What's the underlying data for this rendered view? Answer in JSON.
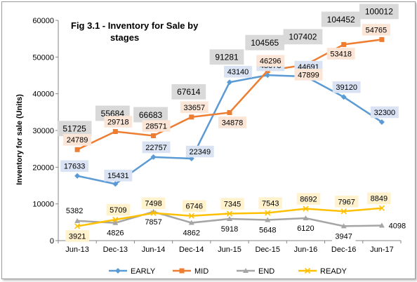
{
  "chart_data": {
    "type": "line",
    "title_line1": "Fig 3.1 - Inventory for Sale by",
    "title_line2": "stages",
    "ylabel": "Inventory for sale (Units)",
    "xlabel": "",
    "ylim": [
      0,
      60000
    ],
    "yticks": [
      0,
      10000,
      20000,
      30000,
      40000,
      50000,
      60000
    ],
    "categories": [
      "Jun-13",
      "Dec-13",
      "Jun-14",
      "Dec-14",
      "Jun-15",
      "Dec-15",
      "Jun-16",
      "Dec-16",
      "Jun-17"
    ],
    "series": [
      {
        "name": "EARLY",
        "color": "#5b9bd5",
        "marker": "diamond",
        "values": [
          17633,
          15431,
          22757,
          22349,
          43140,
          45078,
          44691,
          39120,
          32300
        ]
      },
      {
        "name": "MID",
        "color": "#ed7d31",
        "marker": "square",
        "values": [
          24789,
          29718,
          28571,
          33657,
          34878,
          46296,
          47899,
          53418,
          54765
        ]
      },
      {
        "name": "END",
        "color": "#a5a5a5",
        "marker": "triangle",
        "values": [
          5382,
          4826,
          7857,
          4862,
          5918,
          5648,
          6120,
          3947,
          4098
        ]
      },
      {
        "name": "READY",
        "color": "#ffc000",
        "marker": "cross",
        "values": [
          3921,
          5709,
          7498,
          6746,
          7345,
          7543,
          8692,
          7967,
          8849
        ]
      }
    ],
    "totals": [
      51725,
      55684,
      66683,
      67614,
      91281,
      104565,
      107402,
      104452,
      100012
    ],
    "grid": false,
    "legend": "bottom"
  }
}
